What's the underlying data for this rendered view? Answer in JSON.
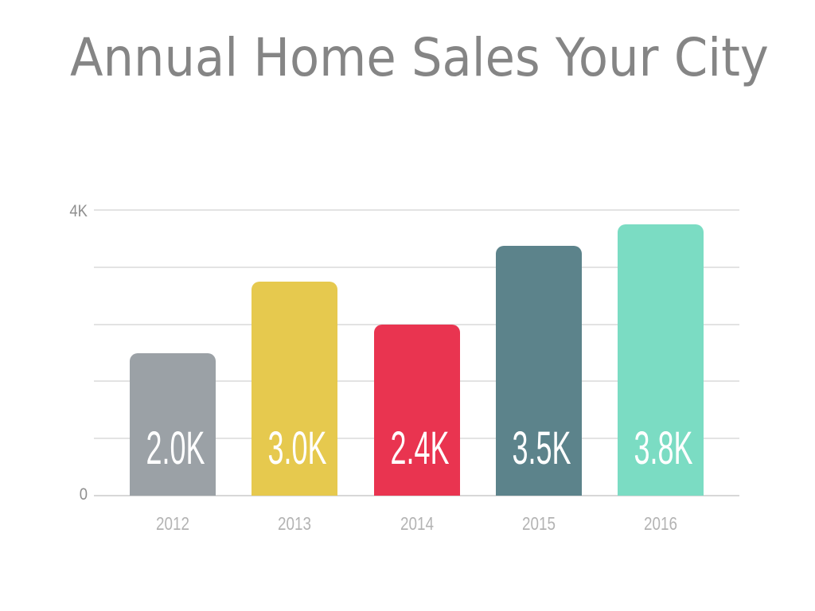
{
  "title": "Annual Home Sales Your City",
  "chart_data": {
    "type": "bar",
    "title": "Annual Home Sales Your City",
    "categories": [
      "2012",
      "2013",
      "2014",
      "2015",
      "2016"
    ],
    "values": [
      2000,
      3000,
      2400,
      3500,
      3800
    ],
    "value_labels": [
      "2.0K",
      "3.0K",
      "2.4K",
      "3.5K",
      "3.8K"
    ],
    "bar_colors": [
      "#9ba1a6",
      "#e6c94e",
      "#e93450",
      "#5c838b",
      "#7bdcc3"
    ],
    "xlabel": "",
    "ylabel": "",
    "ylim": [
      0,
      4000
    ],
    "gridline_step": 800,
    "yticks": [
      {
        "value": 4000,
        "label": "4K"
      },
      {
        "value": 0,
        "label": "0"
      }
    ],
    "grid": true,
    "legend": false,
    "value_labels_position": "inside-bottom"
  },
  "colors": {
    "background": "#ffffff",
    "title_text": "#858585",
    "axis_tick_text": "#8f8f8f",
    "x_label_text": "#b3b3b3",
    "gridline": "#e3e3e3",
    "axis_line": "#d7d7d7",
    "bar_value_text": "#ffffff"
  }
}
